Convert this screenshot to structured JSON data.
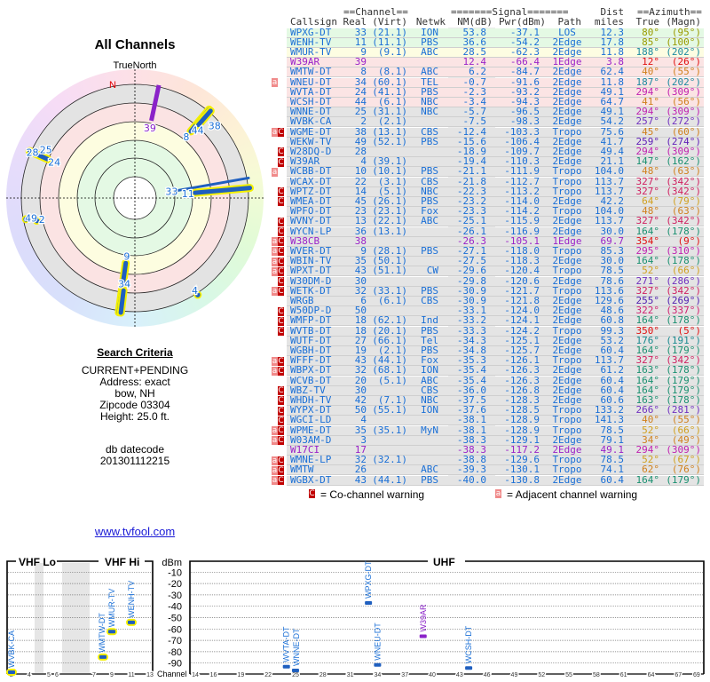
{
  "polar": {
    "title": "All Channels",
    "north_label": "TrueNorth",
    "n_marker": "N",
    "colors": {
      "line": "#1f5fbf",
      "halo": "#f4f000",
      "label": "#1a6fd6",
      "special": "#8a22c8",
      "n_marker": "#e00000"
    }
  },
  "criteria": {
    "title": "Search Criteria",
    "lines": [
      "CURRENT+PENDING",
      "Address: exact",
      "bow, NH",
      "Zipcode 03304",
      "Height: 25.0 ft."
    ],
    "db_label": "db datecode",
    "db_value": "201301112215"
  },
  "link": "www.tvfool.com",
  "table": {
    "group_headers": {
      "channel": "==Channel==",
      "signal": "=======Signal=======",
      "dist": "Dist",
      "azimuth": "==Azimuth=="
    },
    "headers": [
      "Callsign",
      "Real",
      "(Virt)",
      "Netwk",
      "NM(dB)",
      "Pwr(dBm)",
      "Path",
      "miles",
      "True",
      "(Magn)"
    ],
    "row_backgrounds": {
      "green": "#e4f9e4",
      "yellow": "#fdfde2",
      "pink": "#fbe4e4",
      "gray": "#e4e4e4"
    },
    "text_colors": {
      "normal": "#1a6fd6",
      "special": "#9a22c8"
    },
    "rows": [
      [
        "WPXG-DT",
        "33",
        "(21.1)",
        "ION",
        "53.8",
        "-37.1",
        "LOS",
        "12.3",
        "80°",
        "(95°)",
        "",
        "#9a9a00",
        "normal",
        "green"
      ],
      [
        "WENH-TV",
        "11",
        "(11.1)",
        "PBS",
        "36.6",
        "-54.2",
        "2Edge",
        "17.8",
        "85°",
        "(100°)",
        "",
        "#9a9a00",
        "normal",
        "green"
      ],
      [
        "WMUR-TV",
        "9",
        "(9.1)",
        "ABC",
        "28.5",
        "-62.3",
        "2Edge",
        "11.8",
        "188°",
        "(202°)",
        "",
        "#1a8aa0",
        "normal",
        "yellow"
      ],
      [
        "W39AR",
        "39",
        "",
        "",
        "12.4",
        "-66.4",
        "1Edge",
        "3.8",
        "12°",
        "(26°)",
        "",
        "#e01010",
        "special",
        "pink"
      ],
      [
        "WMTW-DT",
        "8",
        "(8.1)",
        "ABC",
        "6.2",
        "-84.7",
        "2Edge",
        "62.4",
        "40°",
        "(55°)",
        "",
        "#d0801c",
        "normal",
        "pink"
      ],
      [
        "WNEU-DT",
        "34",
        "(60.1)",
        "TEL",
        "-0.7",
        "-91.6",
        "2Edge",
        "11.8",
        "187°",
        "(202°)",
        "a",
        "#1a8aa0",
        "normal",
        "pink"
      ],
      [
        "WVTA-DT",
        "24",
        "(41.1)",
        "PBS",
        "-2.3",
        "-93.2",
        "2Edge",
        "49.1",
        "294°",
        "(309°)",
        "",
        "#c020b0",
        "normal",
        "pink"
      ],
      [
        "WCSH-DT",
        "44",
        "(6.1)",
        "NBC",
        "-3.4",
        "-94.3",
        "2Edge",
        "64.7",
        "41°",
        "(56°)",
        "",
        "#d0801c",
        "normal",
        "pink"
      ],
      [
        "WNNE-DT",
        "25",
        "(31.1)",
        "NBC",
        "-5.7",
        "-96.5",
        "2Edge",
        "49.1",
        "294°",
        "(309°)",
        "",
        "#c020b0",
        "normal",
        "gray"
      ],
      [
        "WVBK-CA",
        "2",
        "(2.1)",
        "",
        "-7.5",
        "-98.3",
        "2Edge",
        "54.2",
        "257°",
        "(272°)",
        "",
        "#7030c0",
        "normal",
        "gray"
      ],
      [
        "WGME-DT",
        "38",
        "(13.1)",
        "CBS",
        "-12.4",
        "-103.3",
        "Tropo",
        "75.6",
        "45°",
        "(60°)",
        "aC",
        "#d0801c",
        "normal",
        "gray"
      ],
      [
        "WEKW-TV",
        "49",
        "(52.1)",
        "PBS",
        "-15.6",
        "-106.4",
        "2Edge",
        "41.7",
        "259°",
        "(274°)",
        "",
        "#6020b8",
        "normal",
        "gray"
      ],
      [
        "W28DQ-D",
        "28",
        "",
        "",
        "-18.9",
        "-109.7",
        "2Edge",
        "49.4",
        "294°",
        "(309°)",
        "C",
        "#c020b0",
        "normal",
        "gray"
      ],
      [
        "W39AR",
        "4",
        "(39.1)",
        "",
        "-19.4",
        "-110.3",
        "2Edge",
        "21.1",
        "147°",
        "(162°)",
        "C",
        "#1a9070",
        "normal",
        "gray"
      ],
      [
        "WCBB-DT",
        "10",
        "(10.1)",
        "PBS",
        "-21.1",
        "-111.9",
        "Tropo",
        "104.0",
        "48°",
        "(63°)",
        "a",
        "#d0801c",
        "normal",
        "gray"
      ],
      [
        "WCAX-DT",
        "22",
        "(3.1)",
        "CBS",
        "-21.8",
        "-112.7",
        "Tropo",
        "113.7",
        "327°",
        "(342°)",
        "",
        "#d02060",
        "normal",
        "gray"
      ],
      [
        "WPTZ-DT",
        "14",
        "(5.1)",
        "NBC",
        "-22.3",
        "-113.2",
        "Tropo",
        "113.7",
        "327°",
        "(342°)",
        "C",
        "#d02060",
        "normal",
        "gray"
      ],
      [
        "WMEA-DT",
        "45",
        "(26.1)",
        "PBS",
        "-23.2",
        "-114.0",
        "2Edge",
        "42.2",
        "64°",
        "(79°)",
        "C",
        "#d0a020",
        "normal",
        "gray"
      ],
      [
        "WPFO-DT",
        "23",
        "(23.1)",
        "Fox",
        "-23.3",
        "-114.2",
        "Tropo",
        "104.0",
        "48°",
        "(63°)",
        "",
        "#d0801c",
        "normal",
        "gray"
      ],
      [
        "WVNY-DT",
        "13",
        "(22.1)",
        "ABC",
        "-25.1",
        "-115.9",
        "2Edge",
        "113.7",
        "327°",
        "(342°)",
        "C",
        "#d02060",
        "normal",
        "gray"
      ],
      [
        "WYCN-LP",
        "36",
        "(13.1)",
        "",
        "-26.1",
        "-116.9",
        "2Edge",
        "30.0",
        "164°",
        "(178°)",
        "C",
        "#1a9070",
        "normal",
        "gray"
      ],
      [
        "W38CB",
        "38",
        "",
        "",
        "-26.3",
        "-105.1",
        "1Edge",
        "69.7",
        "354°",
        "(9°)",
        "aC",
        "#e01010",
        "special",
        "gray"
      ],
      [
        "WVER-DT",
        "9",
        "(28.1)",
        "PBS",
        "-27.1",
        "-118.0",
        "Tropo",
        "85.3",
        "295°",
        "(310°)",
        "aC",
        "#c020b0",
        "normal",
        "gray"
      ],
      [
        "WBIN-TV",
        "35",
        "(50.1)",
        "",
        "-27.5",
        "-118.3",
        "2Edge",
        "30.0",
        "164°",
        "(178°)",
        "aC",
        "#1a9070",
        "normal",
        "gray"
      ],
      [
        "WPXT-DT",
        "43",
        "(51.1)",
        "CW",
        "-29.6",
        "-120.4",
        "Tropo",
        "78.5",
        "52°",
        "(66°)",
        "aC",
        "#d0a020",
        "normal",
        "gray"
      ],
      [
        "W30DM-D",
        "30",
        "",
        "",
        "-29.8",
        "-120.6",
        "2Edge",
        "78.6",
        "271°",
        "(286°)",
        "C",
        "#7030c0",
        "normal",
        "gray"
      ],
      [
        "WETK-DT",
        "32",
        "(33.1)",
        "PBS",
        "-30.9",
        "-121.7",
        "Tropo",
        "113.6",
        "327°",
        "(342°)",
        "aC",
        "#d02060",
        "normal",
        "gray"
      ],
      [
        "WRGB",
        "6",
        "(6.1)",
        "CBS",
        "-30.9",
        "-121.8",
        "2Edge",
        "129.6",
        "255°",
        "(269°)",
        "",
        "#5020b0",
        "normal",
        "gray"
      ],
      [
        "W50DP-D",
        "50",
        "",
        "",
        "-33.1",
        "-124.0",
        "2Edge",
        "48.6",
        "322°",
        "(337°)",
        "C",
        "#d02070",
        "normal",
        "gray"
      ],
      [
        "WMFP-DT",
        "18",
        "(62.1)",
        "Ind",
        "-33.2",
        "-124.1",
        "2Edge",
        "60.8",
        "164°",
        "(178°)",
        "C",
        "#1a9070",
        "normal",
        "gray"
      ],
      [
        "WVTB-DT",
        "18",
        "(20.1)",
        "PBS",
        "-33.3",
        "-124.2",
        "Tropo",
        "99.3",
        "350°",
        "(5°)",
        "C",
        "#e01010",
        "normal",
        "gray"
      ],
      [
        "WUTF-DT",
        "27",
        "(66.1)",
        "Tel",
        "-34.3",
        "-125.1",
        "2Edge",
        "53.2",
        "176°",
        "(191°)",
        "",
        "#1a8a90",
        "normal",
        "gray"
      ],
      [
        "WGBH-DT",
        "19",
        "(2.1)",
        "PBS",
        "-34.8",
        "-125.7",
        "2Edge",
        "60.4",
        "164°",
        "(179°)",
        "",
        "#1a9070",
        "normal",
        "gray"
      ],
      [
        "WFFF-DT",
        "43",
        "(44.1)",
        "Fox",
        "-35.3",
        "-126.1",
        "Tropo",
        "113.7",
        "327°",
        "(342°)",
        "aC",
        "#d02060",
        "normal",
        "gray"
      ],
      [
        "WBPX-DT",
        "32",
        "(68.1)",
        "ION",
        "-35.4",
        "-126.3",
        "2Edge",
        "61.2",
        "163°",
        "(178°)",
        "aC",
        "#1a9070",
        "normal",
        "gray"
      ],
      [
        "WCVB-DT",
        "20",
        "(5.1)",
        "ABC",
        "-35.4",
        "-126.3",
        "2Edge",
        "60.4",
        "164°",
        "(179°)",
        "",
        "#1a9070",
        "normal",
        "gray"
      ],
      [
        "WBZ-TV",
        "30",
        "",
        "CBS",
        "-36.0",
        "-126.8",
        "2Edge",
        "60.4",
        "164°",
        "(179°)",
        "C",
        "#1a9070",
        "normal",
        "gray"
      ],
      [
        "WHDH-TV",
        "42",
        "(7.1)",
        "NBC",
        "-37.5",
        "-128.3",
        "2Edge",
        "60.6",
        "163°",
        "(178°)",
        "C",
        "#1a9070",
        "normal",
        "gray"
      ],
      [
        "WYPX-DT",
        "50",
        "(55.1)",
        "ION",
        "-37.6",
        "-128.5",
        "Tropo",
        "133.2",
        "266°",
        "(281°)",
        "C",
        "#7030c0",
        "normal",
        "gray"
      ],
      [
        "WGCI-LD",
        "4",
        "",
        "",
        "-38.1",
        "-128.9",
        "Tropo",
        "141.3",
        "40°",
        "(55°)",
        "C",
        "#d0801c",
        "normal",
        "gray"
      ],
      [
        "WPME-DT",
        "35",
        "(35.1)",
        "MyN",
        "-38.1",
        "-128.9",
        "Tropo",
        "78.5",
        "52°",
        "(66°)",
        "aC",
        "#d0a020",
        "normal",
        "gray"
      ],
      [
        "W03AM-D",
        "3",
        "",
        "",
        "-38.3",
        "-129.1",
        "2Edge",
        "79.1",
        "34°",
        "(49°)",
        "aC",
        "#d0801c",
        "normal",
        "gray"
      ],
      [
        "W17CI",
        "17",
        "",
        "",
        "-38.3",
        "-117.2",
        "2Edge",
        "49.1",
        "294°",
        "(309°)",
        "",
        "#c020b0",
        "special",
        "gray"
      ],
      [
        "WMNE-LP",
        "32",
        "(32.1)",
        "",
        "-38.8",
        "-129.6",
        "Tropo",
        "78.5",
        "52°",
        "(67°)",
        "aC",
        "#d0a020",
        "normal",
        "gray"
      ],
      [
        "WMTW",
        "26",
        "",
        "ABC",
        "-39.3",
        "-130.1",
        "Tropo",
        "74.1",
        "62°",
        "(76°)",
        "aC",
        "#d0801c",
        "normal",
        "gray"
      ],
      [
        "WGBX-DT",
        "43",
        "(44.1)",
        "PBS",
        "-40.0",
        "-130.8",
        "2Edge",
        "60.4",
        "164°",
        "(179°)",
        "aC",
        "#1a9070",
        "normal",
        "gray"
      ]
    ]
  },
  "legend": {
    "co_mark": "C",
    "co_label": "= Co-channel warning",
    "adj_mark": "a",
    "adj_label": "= Adjacent channel warning",
    "co_color": "#c00000",
    "adj_color": "#f08a8a"
  },
  "spectrum": {
    "vhf_lo_label": "VHF Lo",
    "vhf_hi_label": "VHF Hi",
    "uhf_label": "UHF",
    "unit_label": "dBm",
    "channel_label": "Channel",
    "dbm_ticks": [
      "-10",
      "-20",
      "-30",
      "-40",
      "-50",
      "-60",
      "-70",
      "-80",
      "-90"
    ],
    "vhf_ticks": [
      "2",
      "4",
      "5",
      "6",
      "7",
      "9",
      "11",
      "13"
    ],
    "uhf_ticks": [
      "14",
      "16",
      "19",
      "22",
      "25",
      "28",
      "31",
      "34",
      "37",
      "40",
      "43",
      "46",
      "49",
      "52",
      "55",
      "58",
      "61",
      "64",
      "67",
      "69"
    ],
    "y_range_dbm": [
      -100,
      0
    ],
    "bar_color": "#1f5fbf",
    "halo_color": "#f4f000"
  }
}
